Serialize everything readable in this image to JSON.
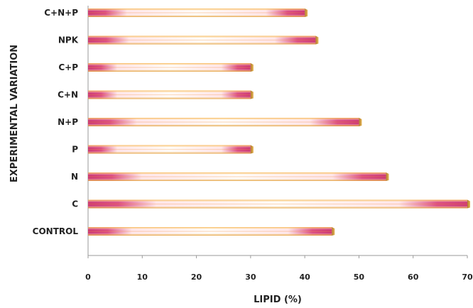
{
  "chart_data": {
    "type": "bar",
    "orientation": "horizontal",
    "categories": [
      "C+N+P",
      "NPK",
      "C+P",
      "C+N",
      "N+P",
      "P",
      "N",
      "C",
      "CONTROL"
    ],
    "values": [
      40,
      42,
      30,
      30,
      50,
      30,
      55,
      70,
      45
    ],
    "xlabel": "LIPID (%)",
    "ylabel": "EXPERIMENTAL VARIATION",
    "xlim": [
      0,
      70
    ],
    "xticks": [
      "0",
      "10",
      "20",
      "30",
      "40",
      "50",
      "60",
      "70"
    ],
    "grid": false,
    "legend": "none",
    "bar_colors": {
      "edge": "#c8286e",
      "mid": "#ffe0ec",
      "core": "#f2a93a",
      "cap": "#d6a24a"
    }
  }
}
